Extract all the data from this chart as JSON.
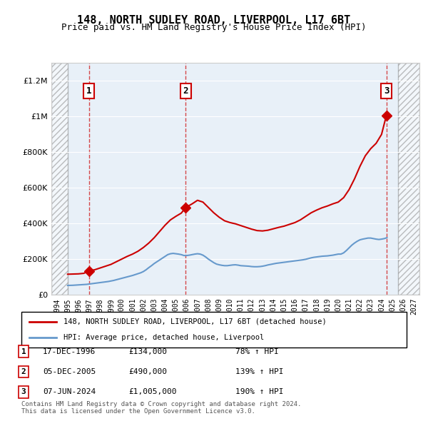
{
  "title": "148, NORTH SUDLEY ROAD, LIVERPOOL, L17 6BT",
  "subtitle": "Price paid vs. HM Land Registry's House Price Index (HPI)",
  "legend_line1": "148, NORTH SUDLEY ROAD, LIVERPOOL, L17 6BT (detached house)",
  "legend_line2": "HPI: Average price, detached house, Liverpool",
  "copyright": "Contains HM Land Registry data © Crown copyright and database right 2024.\nThis data is licensed under the Open Government Licence v3.0.",
  "sale_points": [
    {
      "num": 1,
      "date": "17-DEC-1996",
      "price": 134000,
      "pct": "78%",
      "year_x": 1996.96
    },
    {
      "num": 2,
      "date": "05-DEC-2005",
      "price": 490000,
      "pct": "139%",
      "year_x": 2005.92
    },
    {
      "num": 3,
      "date": "07-JUN-2024",
      "price": 1005000,
      "pct": "190%",
      "year_x": 2024.44
    }
  ],
  "hpi_color": "#6699cc",
  "price_color": "#cc0000",
  "ylim": [
    0,
    1300000
  ],
  "xlim": [
    1993.5,
    2027.5
  ],
  "hatch_left_end": 1995.0,
  "hatch_right_start": 2025.5,
  "hpi_data": {
    "years": [
      1995.0,
      1995.25,
      1995.5,
      1995.75,
      1996.0,
      1996.25,
      1996.5,
      1996.75,
      1997.0,
      1997.25,
      1997.5,
      1997.75,
      1998.0,
      1998.25,
      1998.5,
      1998.75,
      1999.0,
      1999.25,
      1999.5,
      1999.75,
      2000.0,
      2000.25,
      2000.5,
      2000.75,
      2001.0,
      2001.25,
      2001.5,
      2001.75,
      2002.0,
      2002.25,
      2002.5,
      2002.75,
      2003.0,
      2003.25,
      2003.5,
      2003.75,
      2004.0,
      2004.25,
      2004.5,
      2004.75,
      2005.0,
      2005.25,
      2005.5,
      2005.75,
      2006.0,
      2006.25,
      2006.5,
      2006.75,
      2007.0,
      2007.25,
      2007.5,
      2007.75,
      2008.0,
      2008.25,
      2008.5,
      2008.75,
      2009.0,
      2009.25,
      2009.5,
      2009.75,
      2010.0,
      2010.25,
      2010.5,
      2010.75,
      2011.0,
      2011.25,
      2011.5,
      2011.75,
      2012.0,
      2012.25,
      2012.5,
      2012.75,
      2013.0,
      2013.25,
      2013.5,
      2013.75,
      2014.0,
      2014.25,
      2014.5,
      2014.75,
      2015.0,
      2015.25,
      2015.5,
      2015.75,
      2016.0,
      2016.25,
      2016.5,
      2016.75,
      2017.0,
      2017.25,
      2017.5,
      2017.75,
      2018.0,
      2018.25,
      2018.5,
      2018.75,
      2019.0,
      2019.25,
      2019.5,
      2019.75,
      2020.0,
      2020.25,
      2020.5,
      2020.75,
      2021.0,
      2021.25,
      2021.5,
      2021.75,
      2022.0,
      2022.25,
      2022.5,
      2022.75,
      2023.0,
      2023.25,
      2023.5,
      2023.75,
      2024.0,
      2024.25,
      2024.5
    ],
    "values": [
      52000,
      52500,
      53000,
      54000,
      55000,
      56000,
      57000,
      58000,
      60000,
      62000,
      64000,
      66000,
      68000,
      70000,
      72000,
      74000,
      77000,
      80000,
      84000,
      88000,
      92000,
      96000,
      100000,
      104000,
      108000,
      113000,
      118000,
      123000,
      130000,
      140000,
      152000,
      163000,
      175000,
      185000,
      195000,
      205000,
      215000,
      225000,
      230000,
      232000,
      230000,
      228000,
      225000,
      220000,
      220000,
      222000,
      225000,
      228000,
      230000,
      228000,
      222000,
      212000,
      200000,
      190000,
      180000,
      172000,
      168000,
      165000,
      163000,
      163000,
      165000,
      167000,
      168000,
      166000,
      163000,
      162000,
      161000,
      160000,
      158000,
      157000,
      157000,
      158000,
      160000,
      163000,
      167000,
      170000,
      173000,
      176000,
      178000,
      180000,
      182000,
      184000,
      186000,
      188000,
      190000,
      192000,
      194000,
      196000,
      199000,
      203000,
      207000,
      210000,
      212000,
      214000,
      216000,
      217000,
      218000,
      220000,
      222000,
      225000,
      228000,
      228000,
      235000,
      248000,
      263000,
      278000,
      290000,
      300000,
      308000,
      312000,
      315000,
      318000,
      318000,
      315000,
      312000,
      310000,
      312000,
      315000,
      320000
    ]
  },
  "price_data": {
    "years": [
      1995.0,
      1995.5,
      1996.0,
      1996.5,
      1996.96,
      1997.5,
      1998.0,
      1998.5,
      1999.0,
      1999.5,
      2000.0,
      2000.5,
      2001.0,
      2001.5,
      2002.0,
      2002.5,
      2003.0,
      2003.5,
      2004.0,
      2004.5,
      2005.0,
      2005.5,
      2005.92,
      2006.5,
      2007.0,
      2007.5,
      2008.0,
      2008.5,
      2009.0,
      2009.5,
      2010.0,
      2010.5,
      2011.0,
      2011.5,
      2012.0,
      2012.5,
      2013.0,
      2013.5,
      2014.0,
      2014.5,
      2015.0,
      2015.5,
      2016.0,
      2016.5,
      2017.0,
      2017.5,
      2018.0,
      2018.5,
      2019.0,
      2019.5,
      2020.0,
      2020.5,
      2021.0,
      2021.5,
      2022.0,
      2022.5,
      2023.0,
      2023.5,
      2024.0,
      2024.44
    ],
    "values": [
      115000,
      116000,
      117000,
      120000,
      134000,
      140000,
      150000,
      160000,
      170000,
      185000,
      200000,
      215000,
      228000,
      244000,
      265000,
      290000,
      320000,
      355000,
      390000,
      420000,
      440000,
      458000,
      490000,
      510000,
      530000,
      520000,
      490000,
      460000,
      435000,
      415000,
      405000,
      398000,
      388000,
      378000,
      368000,
      360000,
      358000,
      362000,
      370000,
      378000,
      385000,
      395000,
      405000,
      420000,
      440000,
      460000,
      475000,
      488000,
      498000,
      510000,
      520000,
      545000,
      590000,
      650000,
      720000,
      780000,
      820000,
      850000,
      900000,
      1005000
    ]
  }
}
